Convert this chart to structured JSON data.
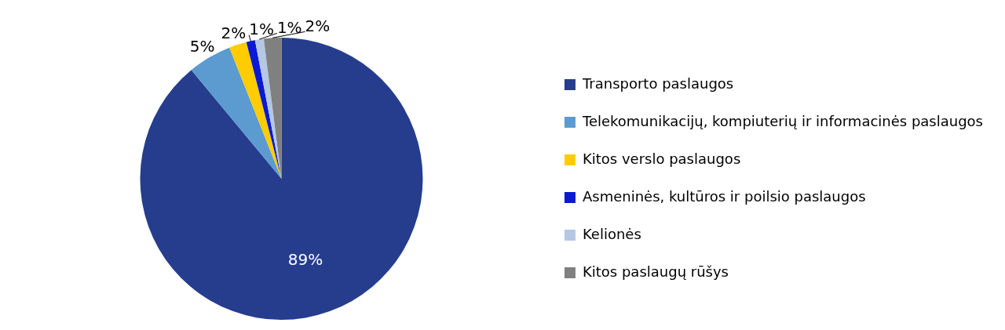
{
  "chart_data": {
    "type": "pie",
    "categories": [
      "Transporto paslaugos",
      "Telekomunikacijų, kompiuterių ir informacinės paslaugos",
      "Kitos verslo paslaugos",
      "Asmeninės, kultūros ir poilsio paslaugos",
      "Kelionės",
      "Kitos paslaugų rūšys"
    ],
    "values": [
      89,
      5,
      2,
      1,
      1,
      2
    ],
    "value_labels": [
      "89%",
      "5%",
      "2%",
      "1%",
      "1%",
      "2%"
    ],
    "colors": [
      "#253d8c",
      "#5b9bd0",
      "#ffcc00",
      "#0a1ad2",
      "#b4c8e4",
      "#808080"
    ],
    "legend": "right"
  }
}
